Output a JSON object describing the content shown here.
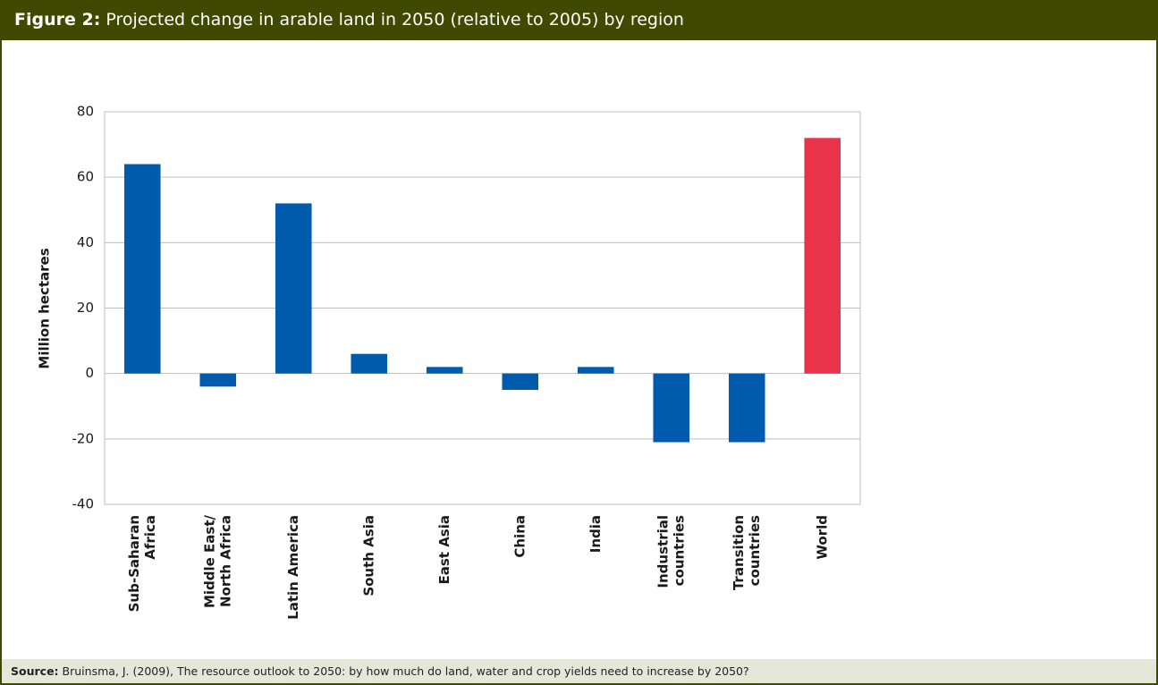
{
  "header": {
    "label": "Figure 2:",
    "text": "Projected change in arable land in 2050 (relative to 2005) by region"
  },
  "footer": {
    "label": "Source:",
    "text": "Bruinsma, J. (2009), The resource outlook to 2050: by how much do land, water and crop yields need to increase by 2050?"
  },
  "chart_data": {
    "type": "bar",
    "y_label": "Million hectares",
    "categories": [
      [
        "Sub-Saharan",
        "Africa"
      ],
      [
        "Middle East/",
        "North Africa"
      ],
      [
        "Latin America"
      ],
      [
        "South Asia"
      ],
      [
        "East Asia"
      ],
      [
        "China"
      ],
      [
        "India"
      ],
      [
        "Industrial",
        "countries"
      ],
      [
        "Transition",
        "countries"
      ],
      [
        "World"
      ]
    ],
    "values": [
      64,
      -4,
      52,
      6,
      2,
      -5,
      2,
      -21,
      -21,
      72
    ],
    "colors": [
      "#005bac",
      "#005bac",
      "#005bac",
      "#005bac",
      "#005bac",
      "#005bac",
      "#005bac",
      "#005bac",
      "#005bac",
      "#e8334a"
    ],
    "ylim": [
      -40,
      80
    ],
    "yticks": [
      -40,
      -20,
      0,
      20,
      40,
      60,
      80
    ],
    "grid": true
  }
}
